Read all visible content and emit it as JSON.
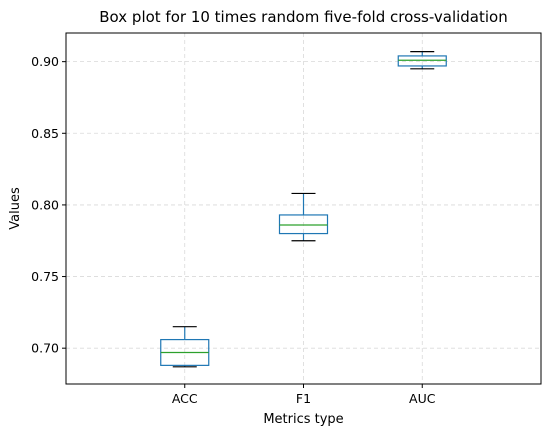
{
  "chart_data": {
    "type": "box",
    "title": "Box plot for 10 times random five-fold cross-validation",
    "xlabel": "Metrics type",
    "ylabel": "Values",
    "categories": [
      "ACC",
      "F1",
      "AUC"
    ],
    "ylim": [
      0.675,
      0.92
    ],
    "yticks": [
      0.7,
      0.75,
      0.8,
      0.85,
      0.9
    ],
    "ytick_labels": [
      "0.70",
      "0.75",
      "0.80",
      "0.85",
      "0.90"
    ],
    "grid": true,
    "boxes": [
      {
        "category": "ACC",
        "whisker_low": 0.687,
        "q1": 0.688,
        "median": 0.697,
        "q3": 0.706,
        "whisker_high": 0.715
      },
      {
        "category": "F1",
        "whisker_low": 0.775,
        "q1": 0.78,
        "median": 0.786,
        "q3": 0.793,
        "whisker_high": 0.808
      },
      {
        "category": "AUC",
        "whisker_low": 0.895,
        "q1": 0.897,
        "median": 0.901,
        "q3": 0.904,
        "whisker_high": 0.907
      }
    ],
    "colors": {
      "box": "#1f77b4",
      "median": "#2ca02c",
      "whisker_cap": "#000000",
      "grid": "#d9d9d9",
      "axis": "#000000"
    }
  }
}
